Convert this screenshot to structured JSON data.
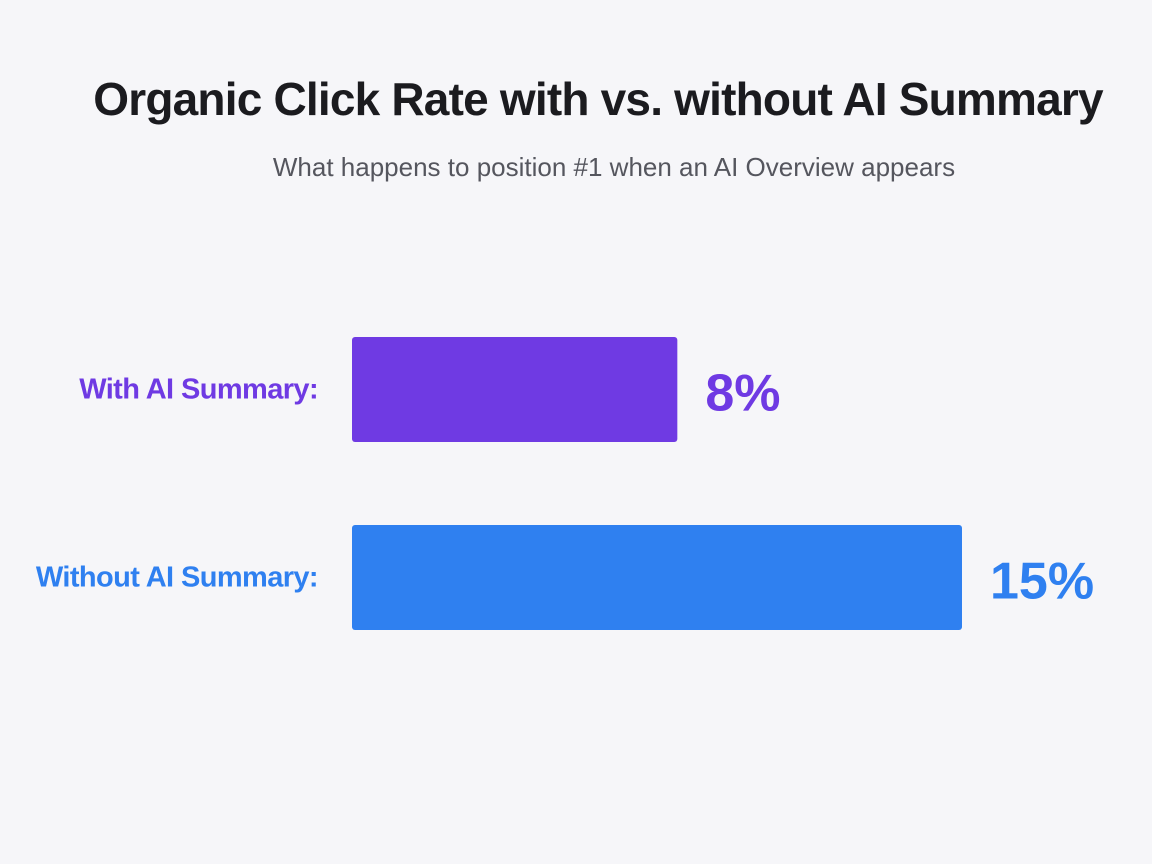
{
  "colors": {
    "background": "#f6f6f9",
    "with_ai": "#6f3ae3",
    "without_ai": "#2f80f0"
  },
  "chart_data": {
    "type": "bar",
    "orientation": "horizontal",
    "title": "Organic Click Rate with vs. without AI Summary",
    "subtitle": "What happens to position #1 when an AI Overview appears",
    "categories": [
      "With AI Summary:",
      "Without AI Summary:"
    ],
    "values": [
      8,
      15
    ],
    "value_labels": [
      "8%",
      "15%"
    ],
    "colors": [
      "#6f3ae3",
      "#2f80f0"
    ],
    "xlim": [
      0,
      15
    ],
    "grid": false,
    "legend": "none"
  }
}
